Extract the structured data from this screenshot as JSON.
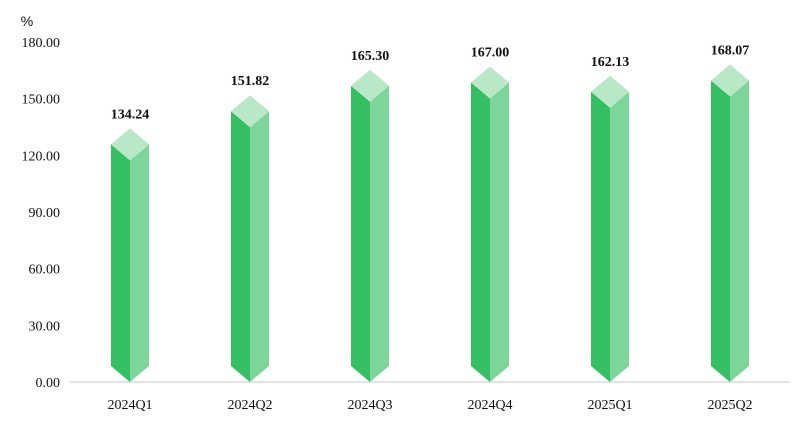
{
  "chart_data": {
    "type": "bar",
    "categories": [
      "2024Q1",
      "2024Q2",
      "2024Q3",
      "2024Q4",
      "2025Q1",
      "2025Q2"
    ],
    "values": [
      134.24,
      151.82,
      165.3,
      167.0,
      162.13,
      168.07
    ],
    "data_labels": [
      "134.24",
      "151.82",
      "165.30",
      "167.00",
      "162.13",
      "168.07"
    ],
    "y_unit": "%",
    "ylim": [
      0,
      180
    ],
    "y_ticks": [
      "0.00",
      "30.00",
      "60.00",
      "90.00",
      "120.00",
      "150.00",
      "180.00"
    ],
    "title": "",
    "xlabel": "",
    "ylabel": "",
    "grid": false,
    "legend": "none",
    "style": "3d-diamond-column",
    "colors": {
      "front_dark": "#33bf62",
      "front_light": "#7dd699",
      "top_cap": "#b8e8c6",
      "axis": "#c8c8c8"
    }
  }
}
